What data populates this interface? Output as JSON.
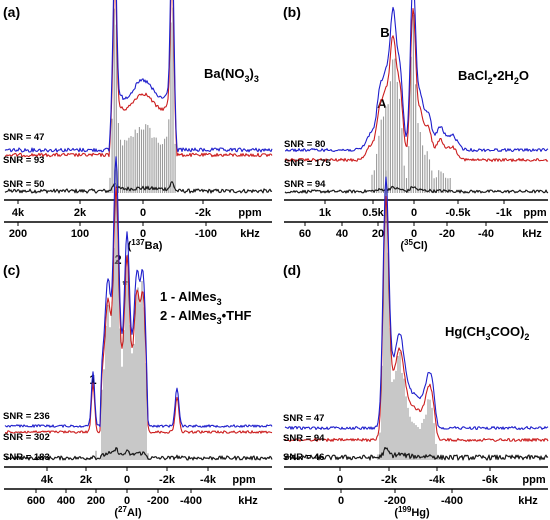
{
  "colors": {
    "trace_top": "#1e1ecc",
    "trace_mid": "#cc1e1e",
    "trace_bottom": "#1a1a1a",
    "stick_fill": "#9a9a9a",
    "axis": "#000000",
    "text": "#000000"
  },
  "chart_data": [
    {
      "panel": "(a)",
      "type": "line",
      "title": "Ba(NO3)3",
      "series": [
        {
          "label": "SNR = 47",
          "color": "blue"
        },
        {
          "label": "SNR = 93",
          "color": "red"
        },
        {
          "label": "SNR = 50",
          "color": "black"
        }
      ],
      "ppm_ticks": [
        "4k",
        "2k",
        "0",
        "-2k",
        "ppm"
      ],
      "khz_ticks": [
        "200",
        "100",
        "0",
        "-100",
        "kHz"
      ],
      "nucleus": "(137Ba)",
      "profile": "static_pake_two_horns"
    },
    {
      "panel": "(b)",
      "type": "line",
      "title": "BaCl2·2H2O",
      "peak_labels": [
        "A",
        "B"
      ],
      "series": [
        {
          "label": "SNR = 80",
          "color": "blue"
        },
        {
          "label": "SNR = 175",
          "color": "red"
        },
        {
          "label": "SNR = 94",
          "color": "black"
        }
      ],
      "ppm_ticks": [
        "1k",
        "0.5k",
        "0",
        "-0.5k",
        "-1k",
        "ppm"
      ],
      "khz_ticks": [
        "60",
        "40",
        "20",
        "0",
        "-20",
        "-40",
        "kHz"
      ],
      "nucleus": "(35Cl)",
      "profile": "narrow_multiplet"
    },
    {
      "panel": "(c)",
      "type": "line",
      "legend": [
        "1 - AlMes3",
        "2 - AlMes3•THF"
      ],
      "peak_labels": [
        "1",
        "2",
        "*"
      ],
      "series": [
        {
          "label": "SNR = 236",
          "color": "blue"
        },
        {
          "label": "SNR = 302",
          "color": "red"
        },
        {
          "label": "SNR = 183",
          "color": "black"
        }
      ],
      "ppm_ticks": [
        "4k",
        "2k",
        "0",
        "-2k",
        "-4k",
        "ppm"
      ],
      "khz_ticks": [
        "600",
        "400",
        "200",
        "0",
        "-200",
        "-400",
        "kHz"
      ],
      "nucleus": "(27Al)",
      "profile": "overlapping_sites"
    },
    {
      "panel": "(d)",
      "type": "line",
      "title": "Hg(CH3COO)2",
      "series": [
        {
          "label": "SNR = 47",
          "color": "blue"
        },
        {
          "label": "SNR = 94",
          "color": "red"
        },
        {
          "label": "SNR = 46",
          "color": "black"
        }
      ],
      "ppm_ticks": [
        "0",
        "-2k",
        "-4k",
        "-6k",
        "ppm"
      ],
      "khz_ticks": [
        "0",
        "-200",
        "-400",
        "kHz"
      ],
      "nucleus": "(199Hg)",
      "profile": "csa_powder"
    }
  ]
}
